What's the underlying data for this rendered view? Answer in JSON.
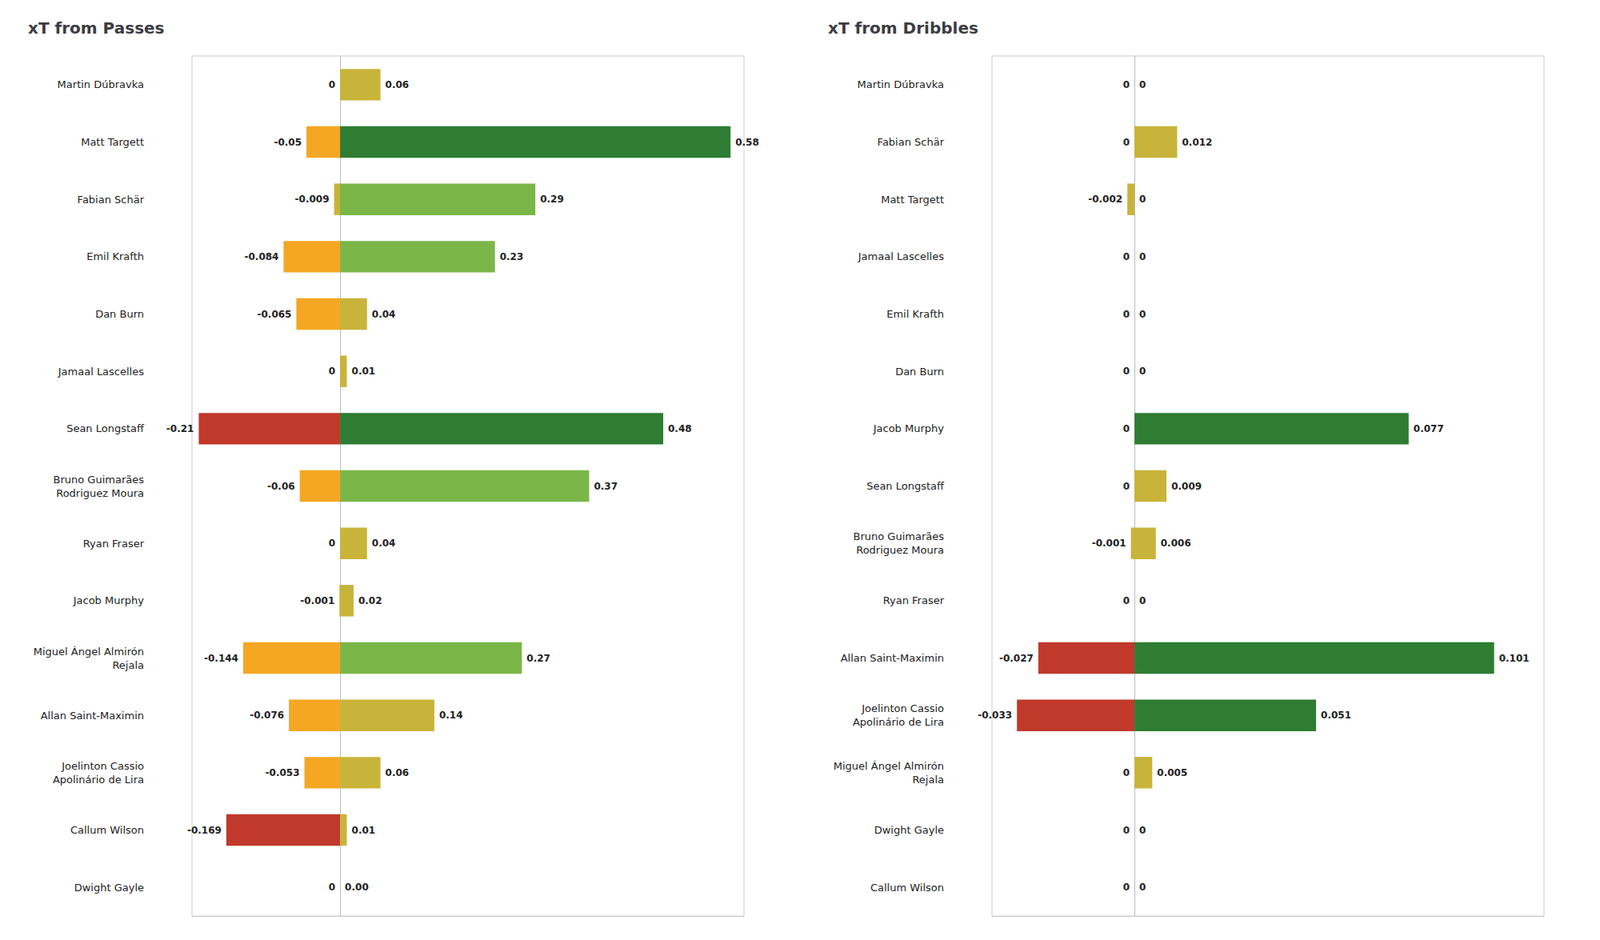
{
  "chart_data": [
    {
      "type": "bar",
      "orientation": "horizontal",
      "title": "xT from Passes",
      "categories": [
        "Martin Dúbravka",
        "Matt Targett",
        "Fabian Schär",
        "Emil Krafth",
        "Dan Burn",
        "Jamaal Lascelles",
        "Sean Longstaff",
        "Bruno Guimarães\nRodriguez Moura",
        "Ryan Fraser",
        "Jacob Murphy",
        "Miguel Ángel Almirón\nRejala",
        "Allan Saint-Maximin",
        "Joelinton Cassio\nApolinário de Lira",
        "Callum Wilson",
        "Dwight Gayle"
      ],
      "series": [
        {
          "values": [
            0.0,
            -0.05,
            -0.009,
            -0.084,
            -0.065,
            0.0,
            -0.21,
            -0.06,
            0.0,
            -0.001,
            -0.144,
            -0.076,
            -0.053,
            -0.169,
            0.0
          ],
          "value_labels": [
            "0",
            "-0.05",
            "-0.009",
            "-0.084",
            "-0.065",
            "0",
            "-0.21",
            "-0.06",
            "0",
            "-0.001",
            "-0.144",
            "-0.076",
            "-0.053",
            "-0.169",
            "0"
          ],
          "colors": [
            "#c8b43a",
            "#f5a623",
            "#c8b43a",
            "#f5a623",
            "#f5a623",
            "#c8b43a",
            "#c0392b",
            "#f5a623",
            "#c8b43a",
            "#c8b43a",
            "#f5a623",
            "#f5a623",
            "#f5a623",
            "#c0392b",
            "#c8b43a"
          ]
        },
        {
          "values": [
            0.06,
            0.58,
            0.29,
            0.23,
            0.04,
            0.01,
            0.48,
            0.37,
            0.04,
            0.02,
            0.27,
            0.14,
            0.06,
            0.01,
            0.0
          ],
          "value_labels": [
            "0.06",
            "0.58",
            "0.29",
            "0.23",
            "0.04",
            "0.01",
            "0.48",
            "0.37",
            "0.04",
            "0.02",
            "0.27",
            "0.14",
            "0.06",
            "0.01",
            "0.00"
          ],
          "colors": [
            "#c8b43a",
            "#2e7d32",
            "#7ab648",
            "#7ab648",
            "#c8b43a",
            "#c8b43a",
            "#2e7d32",
            "#7ab648",
            "#c8b43a",
            "#c8b43a",
            "#7ab648",
            "#c8b43a",
            "#c8b43a",
            "#c8b43a",
            "#c8b43a"
          ]
        }
      ],
      "xlim": [
        -0.22,
        0.6
      ],
      "data_labels": true,
      "tick_labels": "y",
      "grid": false
    },
    {
      "type": "bar",
      "orientation": "horizontal",
      "title": "xT from Dribbles",
      "categories": [
        "Martin Dúbravka",
        "Fabian Schär",
        "Matt Targett",
        "Jamaal Lascelles",
        "Emil Krafth",
        "Dan Burn",
        "Jacob Murphy",
        "Sean Longstaff",
        "Bruno Guimarães\nRodriguez Moura",
        "Ryan Fraser",
        "Allan Saint-Maximin",
        "Joelinton Cassio\nApolinário de Lira",
        "Miguel Ángel Almirón\nRejala",
        "Dwight Gayle",
        "Callum Wilson"
      ],
      "series": [
        {
          "values": [
            0.0,
            0.0,
            -0.002,
            0.0,
            0.0,
            0.0,
            0.0,
            0.0,
            -0.001,
            0.0,
            -0.027,
            -0.033,
            0.0,
            0.0,
            0.0
          ],
          "value_labels": [
            "0",
            "0",
            "-0.002",
            "0",
            "0",
            "0",
            "0",
            "0",
            "-0.001",
            "0",
            "-0.027",
            "-0.033",
            "0",
            "0",
            "0"
          ],
          "colors": [
            "#c8b43a",
            "#c8b43a",
            "#c8b43a",
            "#c8b43a",
            "#c8b43a",
            "#c8b43a",
            "#c8b43a",
            "#c8b43a",
            "#c8b43a",
            "#c8b43a",
            "#c0392b",
            "#c0392b",
            "#c8b43a",
            "#c8b43a",
            "#c8b43a"
          ]
        },
        {
          "values": [
            0.0,
            0.012,
            0.0,
            0.0,
            0.0,
            0.0,
            0.077,
            0.009,
            0.006,
            0.0,
            0.101,
            0.051,
            0.005,
            0.0,
            0.0
          ],
          "value_labels": [
            "0",
            "0.012",
            "0",
            "0",
            "0",
            "0",
            "0.077",
            "0.009",
            "0.006",
            "0",
            "0.101",
            "0.051",
            "0.005",
            "0",
            "0"
          ],
          "colors": [
            "#c8b43a",
            "#c8b43a",
            "#c8b43a",
            "#c8b43a",
            "#c8b43a",
            "#c8b43a",
            "#2e7d32",
            "#c8b43a",
            "#c8b43a",
            "#c8b43a",
            "#2e7d32",
            "#2e7d32",
            "#c8b43a",
            "#c8b43a",
            "#c8b43a"
          ]
        }
      ],
      "xlim": [
        -0.04,
        0.115
      ],
      "data_labels": true,
      "tick_labels": "y",
      "grid": false
    }
  ]
}
